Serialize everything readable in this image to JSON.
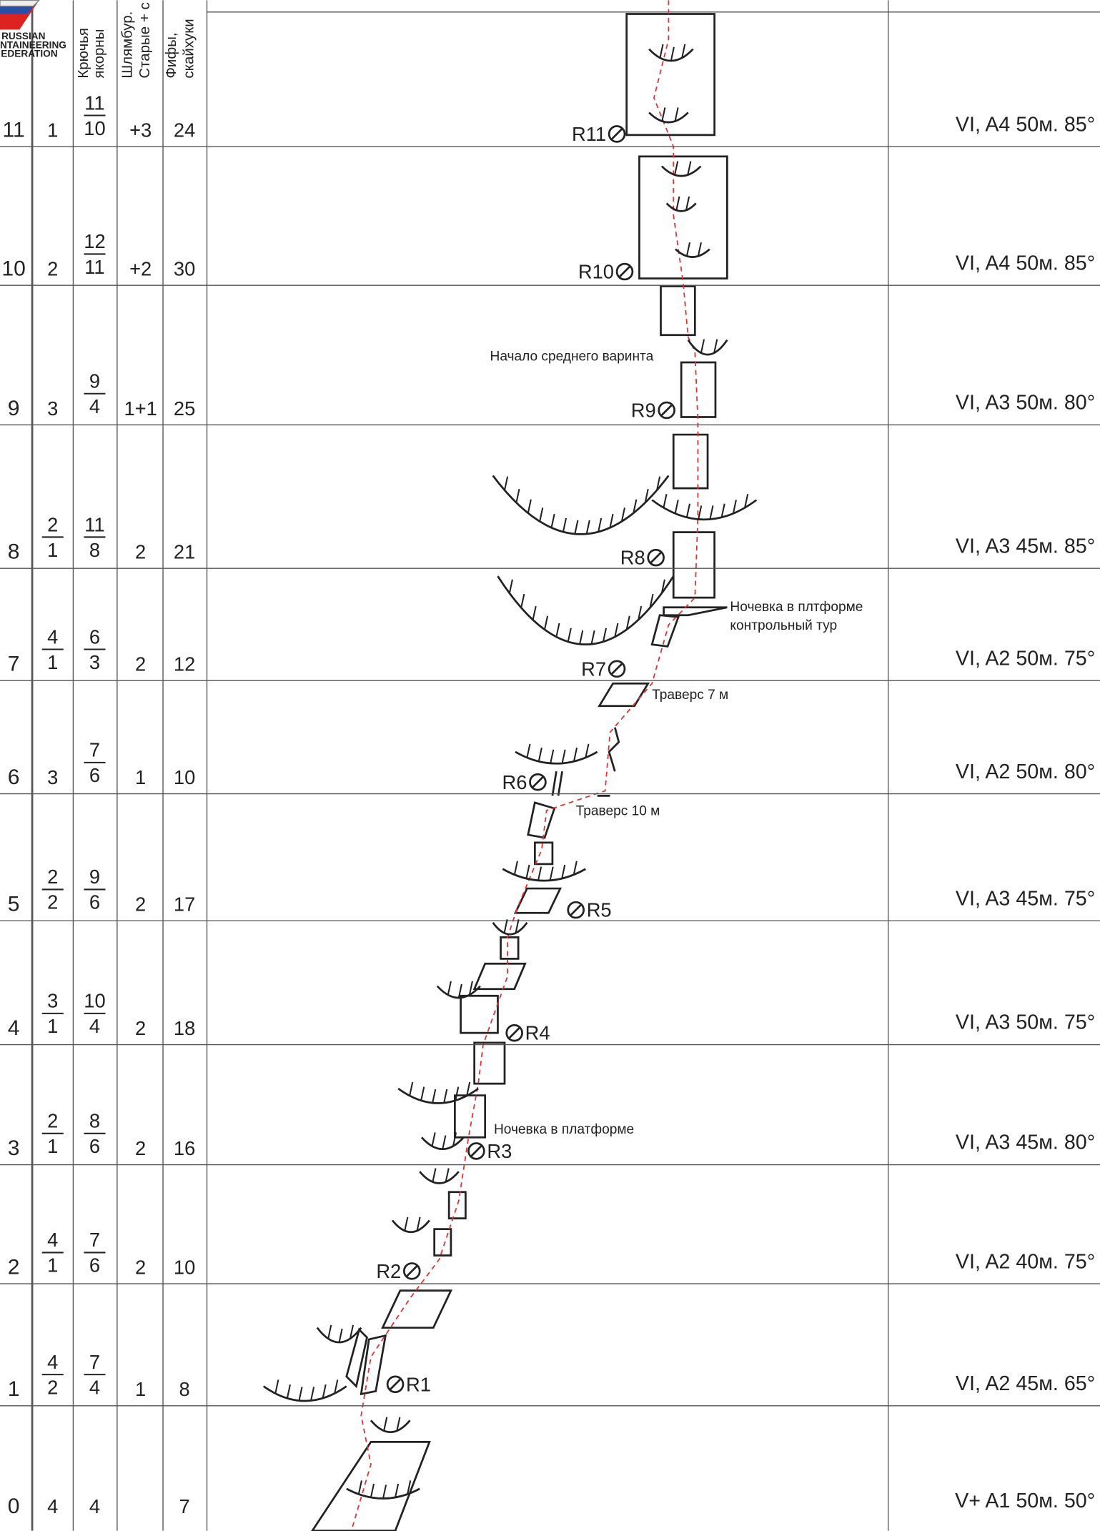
{
  "logo": [
    "RUSSIAN",
    "NTAINEERING",
    "EDERATION"
  ],
  "header": {
    "columns": [
      [
        "Крючья",
        "якорны"
      ],
      [
        "Шлямбур.",
        "Старые + с"
      ],
      [
        "Фифы,",
        "скайхуки"
      ]
    ]
  },
  "rows": [
    {
      "pitch": "11",
      "c1": "1",
      "c2": {
        "top": "11",
        "bottom": "10"
      },
      "c3": "+3",
      "c4": "24",
      "grade": "VI, A4  50м.  85°"
    },
    {
      "pitch": "10",
      "c1": "2",
      "c2": {
        "top": "12",
        "bottom": "11"
      },
      "c3": "+2",
      "c4": "30",
      "grade": "VI, A4  50м.  85°"
    },
    {
      "pitch": "9",
      "c1": "3",
      "c2": {
        "top": "9",
        "bottom": "4"
      },
      "c3": "1+1",
      "c4": "25",
      "grade": "VI, A3  50м.  80°"
    },
    {
      "pitch": "8",
      "c1": {
        "top": "2",
        "bottom": "1"
      },
      "c2": {
        "top": "11",
        "bottom": "8"
      },
      "c3": "2",
      "c4": "21",
      "grade": "VI, A3  45м.  85°"
    },
    {
      "pitch": "7",
      "c1": {
        "top": "4",
        "bottom": "1"
      },
      "c2": {
        "top": "6",
        "bottom": "3"
      },
      "c3": "2",
      "c4": "12",
      "grade": "VI, A2  50м.  75°"
    },
    {
      "pitch": "6",
      "c1": "3",
      "c2": {
        "top": "7",
        "bottom": "6"
      },
      "c3": "1",
      "c4": "10",
      "grade": "VI, A2   50м.  80°"
    },
    {
      "pitch": "5",
      "c1": {
        "top": "2",
        "bottom": "2"
      },
      "c2": {
        "top": "9",
        "bottom": "6"
      },
      "c3": "2",
      "c4": "17",
      "grade": "VI, A3  45м.  75°"
    },
    {
      "pitch": "4",
      "c1": {
        "top": "3",
        "bottom": "1"
      },
      "c2": {
        "top": "10",
        "bottom": "4"
      },
      "c3": "2",
      "c4": "18",
      "grade": "VI, A3  50м.  75°"
    },
    {
      "pitch": "3",
      "c1": {
        "top": "2",
        "bottom": "1"
      },
      "c2": {
        "top": "8",
        "bottom": "6"
      },
      "c3": "2",
      "c4": "16",
      "grade": "VI, A3  45м.  80°"
    },
    {
      "pitch": "2",
      "c1": {
        "top": "4",
        "bottom": "1"
      },
      "c2": {
        "top": "7",
        "bottom": "6"
      },
      "c3": "2",
      "c4": "10",
      "grade": "VI, A2  40м.  75°"
    },
    {
      "pitch": "1",
      "c1": {
        "top": "4",
        "bottom": "2"
      },
      "c2": {
        "top": "7",
        "bottom": "4"
      },
      "c3": "1",
      "c4": "8",
      "grade": "VI, A2  45м.  65°"
    },
    {
      "pitch": "0",
      "c1": "4",
      "c2": "4",
      "c4": "7",
      "grade": "V+  A1  50м.  50°"
    }
  ],
  "anchors": [
    "R11",
    "R10",
    "R9",
    "R8",
    "R7",
    "R6",
    "R5",
    "R4",
    "R3",
    "R2",
    "R1"
  ],
  "notes": [
    "Начало среднего варинта",
    "Ночевка в плтформе",
    "контрольный тур",
    "Траверс 7 м",
    "Траверс 10 м",
    "Ночевка в платформе"
  ]
}
